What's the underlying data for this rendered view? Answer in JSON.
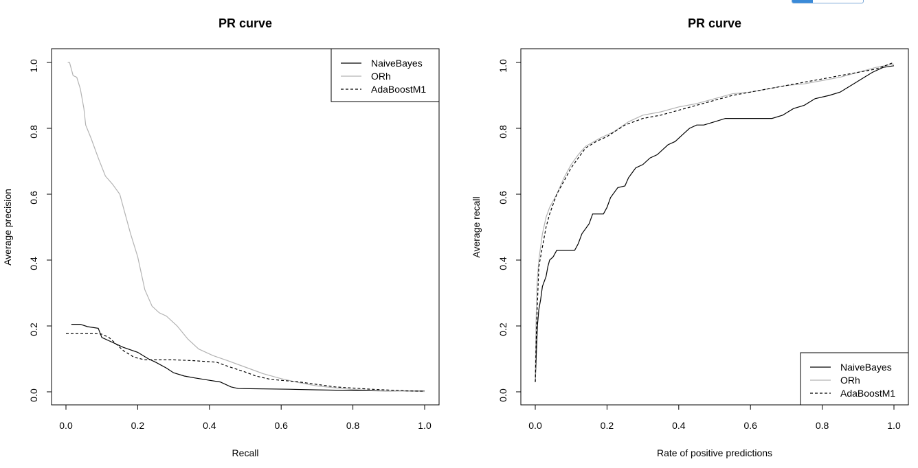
{
  "chart_data": [
    {
      "type": "line",
      "title": "PR curve",
      "xlabel": "Recall",
      "ylabel": "Average precision",
      "xlim": [
        0,
        1
      ],
      "ylim": [
        0,
        1
      ],
      "xticks": [
        "0.0",
        "0.2",
        "0.4",
        "0.6",
        "0.8",
        "1.0"
      ],
      "yticks": [
        "0.0",
        "0.2",
        "0.4",
        "0.6",
        "0.8",
        "1.0"
      ],
      "legend_position": "top-right",
      "series": [
        {
          "name": "NaiveBayes",
          "color": "#000000",
          "dash": "solid",
          "points": [
            [
              0.015,
              0.205
            ],
            [
              0.04,
              0.205
            ],
            [
              0.06,
              0.198
            ],
            [
              0.09,
              0.193
            ],
            [
              0.1,
              0.165
            ],
            [
              0.13,
              0.15
            ],
            [
              0.16,
              0.135
            ],
            [
              0.2,
              0.12
            ],
            [
              0.23,
              0.1
            ],
            [
              0.25,
              0.09
            ],
            [
              0.28,
              0.072
            ],
            [
              0.3,
              0.058
            ],
            [
              0.33,
              0.048
            ],
            [
              0.36,
              0.042
            ],
            [
              0.4,
              0.035
            ],
            [
              0.43,
              0.03
            ],
            [
              0.46,
              0.015
            ],
            [
              0.48,
              0.01
            ],
            [
              0.55,
              0.009
            ],
            [
              0.62,
              0.008
            ],
            [
              0.7,
              0.006
            ],
            [
              0.8,
              0.004
            ],
            [
              0.9,
              0.003
            ],
            [
              1.0,
              0.002
            ]
          ]
        },
        {
          "name": "ORh",
          "color": "#b3b3b3",
          "dash": "solid",
          "points": [
            [
              0.005,
              1.0
            ],
            [
              0.01,
              1.0
            ],
            [
              0.02,
              0.96
            ],
            [
              0.03,
              0.955
            ],
            [
              0.04,
              0.92
            ],
            [
              0.05,
              0.86
            ],
            [
              0.055,
              0.81
            ],
            [
              0.07,
              0.77
            ],
            [
              0.09,
              0.71
            ],
            [
              0.11,
              0.655
            ],
            [
              0.13,
              0.63
            ],
            [
              0.15,
              0.6
            ],
            [
              0.16,
              0.56
            ],
            [
              0.18,
              0.48
            ],
            [
              0.2,
              0.41
            ],
            [
              0.21,
              0.36
            ],
            [
              0.22,
              0.31
            ],
            [
              0.24,
              0.26
            ],
            [
              0.26,
              0.24
            ],
            [
              0.28,
              0.23
            ],
            [
              0.31,
              0.2
            ],
            [
              0.34,
              0.16
            ],
            [
              0.37,
              0.13
            ],
            [
              0.41,
              0.11
            ],
            [
              0.45,
              0.095
            ],
            [
              0.5,
              0.075
            ],
            [
              0.55,
              0.055
            ],
            [
              0.6,
              0.04
            ],
            [
              0.65,
              0.028
            ],
            [
              0.7,
              0.018
            ],
            [
              0.75,
              0.012
            ],
            [
              0.8,
              0.007
            ],
            [
              0.9,
              0.003
            ],
            [
              1.0,
              0.001
            ]
          ]
        },
        {
          "name": "AdaBoostM1",
          "color": "#000000",
          "dash": "dashed",
          "points": [
            [
              0.0,
              0.178
            ],
            [
              0.08,
              0.178
            ],
            [
              0.1,
              0.175
            ],
            [
              0.12,
              0.165
            ],
            [
              0.14,
              0.145
            ],
            [
              0.16,
              0.125
            ],
            [
              0.19,
              0.105
            ],
            [
              0.22,
              0.097
            ],
            [
              0.3,
              0.097
            ],
            [
              0.35,
              0.095
            ],
            [
              0.42,
              0.09
            ],
            [
              0.45,
              0.078
            ],
            [
              0.5,
              0.06
            ],
            [
              0.53,
              0.048
            ],
            [
              0.57,
              0.038
            ],
            [
              0.6,
              0.035
            ],
            [
              0.65,
              0.03
            ],
            [
              0.75,
              0.015
            ],
            [
              0.85,
              0.008
            ],
            [
              0.95,
              0.003
            ],
            [
              1.0,
              0.002
            ]
          ]
        }
      ]
    },
    {
      "type": "line",
      "title": "PR curve",
      "xlabel": "Rate of positive predictions",
      "ylabel": "Average recall",
      "xlim": [
        0,
        1
      ],
      "ylim": [
        0,
        1
      ],
      "xticks": [
        "0.0",
        "0.2",
        "0.4",
        "0.6",
        "0.8",
        "1.0"
      ],
      "yticks": [
        "0.0",
        "0.2",
        "0.4",
        "0.6",
        "0.8",
        "1.0"
      ],
      "legend_position": "bottom-right",
      "series": [
        {
          "name": "NaiveBayes",
          "color": "#000000",
          "dash": "solid",
          "points": [
            [
              0.0,
              0.03
            ],
            [
              0.003,
              0.12
            ],
            [
              0.006,
              0.2
            ],
            [
              0.01,
              0.25
            ],
            [
              0.015,
              0.28
            ],
            [
              0.02,
              0.32
            ],
            [
              0.03,
              0.35
            ],
            [
              0.035,
              0.38
            ],
            [
              0.04,
              0.4
            ],
            [
              0.05,
              0.41
            ],
            [
              0.06,
              0.43
            ],
            [
              0.08,
              0.43
            ],
            [
              0.11,
              0.43
            ],
            [
              0.12,
              0.45
            ],
            [
              0.13,
              0.48
            ],
            [
              0.15,
              0.51
            ],
            [
              0.16,
              0.54
            ],
            [
              0.19,
              0.54
            ],
            [
              0.2,
              0.56
            ],
            [
              0.21,
              0.59
            ],
            [
              0.23,
              0.62
            ],
            [
              0.25,
              0.625
            ],
            [
              0.26,
              0.65
            ],
            [
              0.28,
              0.68
            ],
            [
              0.3,
              0.69
            ],
            [
              0.32,
              0.71
            ],
            [
              0.34,
              0.72
            ],
            [
              0.37,
              0.75
            ],
            [
              0.39,
              0.76
            ],
            [
              0.41,
              0.78
            ],
            [
              0.43,
              0.8
            ],
            [
              0.45,
              0.81
            ],
            [
              0.47,
              0.81
            ],
            [
              0.5,
              0.82
            ],
            [
              0.53,
              0.83
            ],
            [
              0.58,
              0.83
            ],
            [
              0.66,
              0.83
            ],
            [
              0.69,
              0.84
            ],
            [
              0.72,
              0.86
            ],
            [
              0.75,
              0.87
            ],
            [
              0.78,
              0.89
            ],
            [
              0.82,
              0.9
            ],
            [
              0.85,
              0.91
            ],
            [
              0.88,
              0.93
            ],
            [
              0.91,
              0.95
            ],
            [
              0.94,
              0.97
            ],
            [
              0.97,
              0.985
            ],
            [
              1.0,
              0.99
            ]
          ]
        },
        {
          "name": "ORh",
          "color": "#b3b3b3",
          "dash": "solid",
          "points": [
            [
              0.0,
              0.03
            ],
            [
              0.002,
              0.2
            ],
            [
              0.005,
              0.33
            ],
            [
              0.01,
              0.4
            ],
            [
              0.02,
              0.48
            ],
            [
              0.03,
              0.53
            ],
            [
              0.04,
              0.56
            ],
            [
              0.06,
              0.6
            ],
            [
              0.08,
              0.65
            ],
            [
              0.1,
              0.69
            ],
            [
              0.12,
              0.72
            ],
            [
              0.14,
              0.745
            ],
            [
              0.18,
              0.77
            ],
            [
              0.22,
              0.79
            ],
            [
              0.26,
              0.82
            ],
            [
              0.3,
              0.84
            ],
            [
              0.35,
              0.85
            ],
            [
              0.4,
              0.865
            ],
            [
              0.45,
              0.875
            ],
            [
              0.5,
              0.89
            ],
            [
              0.55,
              0.905
            ],
            [
              0.6,
              0.91
            ],
            [
              0.65,
              0.92
            ],
            [
              0.7,
              0.93
            ],
            [
              0.75,
              0.935
            ],
            [
              0.8,
              0.945
            ],
            [
              0.85,
              0.955
            ],
            [
              0.9,
              0.97
            ],
            [
              0.95,
              0.985
            ],
            [
              1.0,
              0.995
            ]
          ]
        },
        {
          "name": "AdaBoostM1",
          "color": "#000000",
          "dash": "dashed",
          "points": [
            [
              0.0,
              0.03
            ],
            [
              0.003,
              0.18
            ],
            [
              0.007,
              0.3
            ],
            [
              0.01,
              0.38
            ],
            [
              0.02,
              0.44
            ],
            [
              0.03,
              0.5
            ],
            [
              0.04,
              0.54
            ],
            [
              0.05,
              0.57
            ],
            [
              0.06,
              0.6
            ],
            [
              0.08,
              0.64
            ],
            [
              0.1,
              0.68
            ],
            [
              0.12,
              0.71
            ],
            [
              0.14,
              0.74
            ],
            [
              0.17,
              0.76
            ],
            [
              0.2,
              0.775
            ],
            [
              0.25,
              0.81
            ],
            [
              0.3,
              0.83
            ],
            [
              0.35,
              0.84
            ],
            [
              0.4,
              0.855
            ],
            [
              0.45,
              0.87
            ],
            [
              0.5,
              0.885
            ],
            [
              0.55,
              0.9
            ],
            [
              0.6,
              0.91
            ],
            [
              0.7,
              0.93
            ],
            [
              0.8,
              0.95
            ],
            [
              0.9,
              0.97
            ],
            [
              0.95,
              0.98
            ],
            [
              1.0,
              1.0
            ]
          ]
        }
      ]
    }
  ]
}
